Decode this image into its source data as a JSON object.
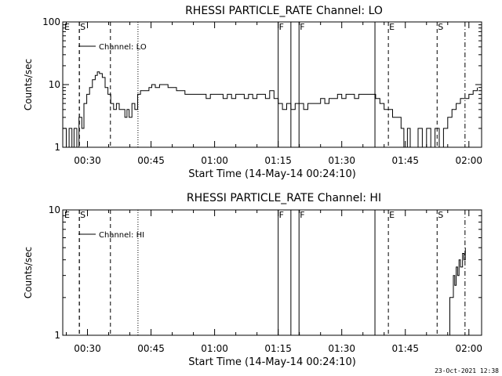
{
  "footer_timestamp": "23-Oct-2021 12:38",
  "chart_data": [
    {
      "type": "line",
      "title": "RHESSI PARTICLE_RATE Channel: LO",
      "xlabel": "Start Time (14-May-14 00:24:10)",
      "ylabel": "Counts/sec",
      "yscale": "log",
      "ylim": [
        1,
        100
      ],
      "xlim": [
        "00:24:10",
        "02:03:00"
      ],
      "y_ticks": [
        "1",
        "10",
        "100"
      ],
      "x_ticks": [
        "00:30",
        "00:45",
        "01:00",
        "01:15",
        "01:30",
        "01:45",
        "02:00"
      ],
      "legend": "Channel: LO",
      "legend_position": "top-left",
      "markers": [
        {
          "label": "E",
          "time": "00:28:05",
          "style": "dashed"
        },
        {
          "label": "S",
          "time": "00:28:05",
          "style": "dashed"
        },
        {
          "label": "",
          "time": "00:35:25",
          "style": "dashed"
        },
        {
          "label": "",
          "time": "00:41:55",
          "style": "dotted"
        },
        {
          "label": "F",
          "time": "01:15:00",
          "style": "solid"
        },
        {
          "label": "",
          "time": "01:18:00",
          "style": "solid"
        },
        {
          "label": "F",
          "time": "01:19:55",
          "style": "solid"
        },
        {
          "label": "",
          "time": "01:37:50",
          "style": "solid"
        },
        {
          "label": "E",
          "time": "01:41:00",
          "style": "dashed"
        },
        {
          "label": "S",
          "time": "01:52:30",
          "style": "dashed"
        },
        {
          "label": "",
          "time": "01:59:05",
          "style": "dashdot"
        }
      ],
      "series": [
        {
          "name": "Channel: LO",
          "points": [
            [
              "00:24:10",
              2
            ],
            [
              "00:25:00",
              1
            ],
            [
              "00:25:40",
              2
            ],
            [
              "00:26:20",
              1
            ],
            [
              "00:26:50",
              2
            ],
            [
              "00:27:30",
              1
            ],
            [
              "00:28:00",
              3
            ],
            [
              "00:28:40",
              2
            ],
            [
              "00:29:10",
              5
            ],
            [
              "00:29:50",
              7
            ],
            [
              "00:30:30",
              9
            ],
            [
              "00:31:10",
              12
            ],
            [
              "00:31:50",
              14
            ],
            [
              "00:32:20",
              16
            ],
            [
              "00:32:50",
              15
            ],
            [
              "00:33:30",
              13
            ],
            [
              "00:34:10",
              9
            ],
            [
              "00:34:50",
              7
            ],
            [
              "00:35:30",
              5
            ],
            [
              "00:36:10",
              4
            ],
            [
              "00:36:50",
              5
            ],
            [
              "00:37:30",
              4
            ],
            [
              "00:38:10",
              4
            ],
            [
              "00:38:50",
              3
            ],
            [
              "00:39:20",
              4
            ],
            [
              "00:39:50",
              3
            ],
            [
              "00:40:30",
              5
            ],
            [
              "00:41:10",
              4
            ],
            [
              "00:41:50",
              7
            ],
            [
              "00:42:30",
              8
            ],
            [
              "00:43:10",
              8
            ],
            [
              "00:43:50",
              8
            ],
            [
              "00:44:30",
              9
            ],
            [
              "00:45:10",
              10
            ],
            [
              "00:46:00",
              9
            ],
            [
              "00:47:00",
              10
            ],
            [
              "00:48:00",
              10
            ],
            [
              "00:49:00",
              9
            ],
            [
              "00:50:00",
              9
            ],
            [
              "00:51:00",
              8
            ],
            [
              "00:52:00",
              8
            ],
            [
              "00:53:00",
              7
            ],
            [
              "00:54:00",
              7
            ],
            [
              "00:55:00",
              7
            ],
            [
              "00:56:00",
              7
            ],
            [
              "00:57:00",
              7
            ],
            [
              "00:58:00",
              6
            ],
            [
              "00:59:00",
              7
            ],
            [
              "01:00:00",
              7
            ],
            [
              "01:01:00",
              7
            ],
            [
              "01:02:00",
              6
            ],
            [
              "01:03:00",
              7
            ],
            [
              "01:04:00",
              6
            ],
            [
              "01:05:00",
              7
            ],
            [
              "01:06:00",
              7
            ],
            [
              "01:07:00",
              6
            ],
            [
              "01:08:00",
              7
            ],
            [
              "01:09:00",
              6
            ],
            [
              "01:10:00",
              7
            ],
            [
              "01:11:00",
              7
            ],
            [
              "01:12:00",
              6
            ],
            [
              "01:13:00",
              8
            ],
            [
              "01:14:00",
              6
            ],
            [
              "01:15:00",
              5
            ],
            [
              "01:16:00",
              4
            ],
            [
              "01:17:00",
              5
            ],
            [
              "01:18:00",
              4
            ],
            [
              "01:19:00",
              5
            ],
            [
              "01:20:00",
              5
            ],
            [
              "01:21:00",
              4
            ],
            [
              "01:22:00",
              5
            ],
            [
              "01:23:00",
              5
            ],
            [
              "01:24:00",
              5
            ],
            [
              "01:25:00",
              6
            ],
            [
              "01:26:00",
              5
            ],
            [
              "01:27:00",
              6
            ],
            [
              "01:28:00",
              6
            ],
            [
              "01:29:00",
              7
            ],
            [
              "01:30:00",
              6
            ],
            [
              "01:31:00",
              7
            ],
            [
              "01:32:00",
              7
            ],
            [
              "01:33:00",
              6
            ],
            [
              "01:34:00",
              7
            ],
            [
              "01:35:00",
              7
            ],
            [
              "01:36:00",
              7
            ],
            [
              "01:37:00",
              7
            ],
            [
              "01:38:00",
              6
            ],
            [
              "01:39:00",
              5
            ],
            [
              "01:40:00",
              4
            ],
            [
              "01:41:00",
              4
            ],
            [
              "01:42:00",
              3
            ],
            [
              "01:43:00",
              3
            ],
            [
              "01:44:00",
              2
            ],
            [
              "01:44:40",
              1
            ],
            [
              "01:45:30",
              2
            ],
            [
              "01:46:10",
              1
            ],
            [
              "01:47:00",
              1
            ],
            [
              "01:48:00",
              2
            ],
            [
              "01:49:00",
              1
            ],
            [
              "01:50:00",
              2
            ],
            [
              "01:51:00",
              1
            ],
            [
              "01:52:00",
              2
            ],
            [
              "01:53:00",
              1
            ],
            [
              "01:54:00",
              2
            ],
            [
              "01:55:00",
              3
            ],
            [
              "01:56:00",
              4
            ],
            [
              "01:57:00",
              5
            ],
            [
              "01:58:00",
              6
            ],
            [
              "01:59:00",
              6
            ],
            [
              "02:00:00",
              7
            ],
            [
              "02:01:00",
              8
            ],
            [
              "02:02:00",
              9
            ]
          ]
        }
      ]
    },
    {
      "type": "line",
      "title": "RHESSI PARTICLE_RATE Channel: HI",
      "xlabel": "Start Time (14-May-14 00:24:10)",
      "ylabel": "Counts/sec",
      "yscale": "log",
      "ylim": [
        1,
        10
      ],
      "xlim": [
        "00:24:10",
        "02:03:00"
      ],
      "y_ticks": [
        "1",
        "10"
      ],
      "x_ticks": [
        "00:30",
        "00:45",
        "01:00",
        "01:15",
        "01:30",
        "01:45",
        "02:00"
      ],
      "legend": "Channel: HI",
      "legend_position": "top-left",
      "markers": [
        {
          "label": "E",
          "time": "00:28:05",
          "style": "dashed"
        },
        {
          "label": "S",
          "time": "00:28:05",
          "style": "dashed"
        },
        {
          "label": "",
          "time": "00:35:25",
          "style": "dashed"
        },
        {
          "label": "",
          "time": "00:41:55",
          "style": "dotted"
        },
        {
          "label": "F",
          "time": "01:15:00",
          "style": "solid"
        },
        {
          "label": "",
          "time": "01:18:00",
          "style": "solid"
        },
        {
          "label": "F",
          "time": "01:19:55",
          "style": "solid"
        },
        {
          "label": "",
          "time": "01:37:50",
          "style": "solid"
        },
        {
          "label": "E",
          "time": "01:41:00",
          "style": "dashed"
        },
        {
          "label": "S",
          "time": "01:52:30",
          "style": "dashed"
        },
        {
          "label": "",
          "time": "01:59:05",
          "style": "dashdot"
        }
      ],
      "series": [
        {
          "name": "Channel: HI",
          "points": [
            [
              "01:55:00",
              1
            ],
            [
              "01:55:30",
              2
            ],
            [
              "01:55:50",
              2
            ],
            [
              "01:56:20",
              3
            ],
            [
              "01:56:40",
              2.5
            ],
            [
              "01:57:00",
              3.5
            ],
            [
              "01:57:20",
              3
            ],
            [
              "01:57:40",
              4
            ],
            [
              "01:58:00",
              3.5
            ],
            [
              "01:58:30",
              4.5
            ],
            [
              "01:58:50",
              4
            ],
            [
              "01:59:10",
              5
            ]
          ]
        }
      ]
    }
  ]
}
